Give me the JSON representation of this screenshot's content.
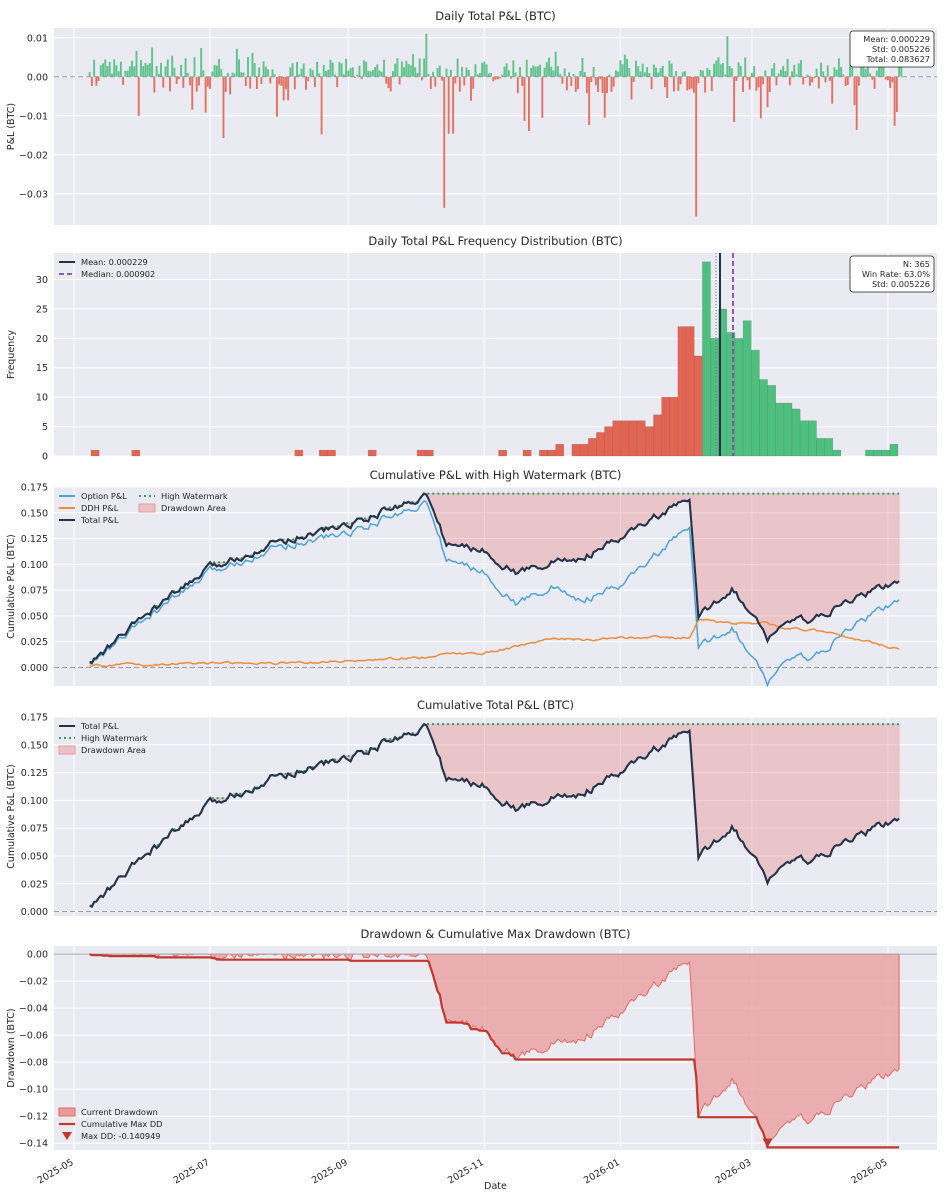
{
  "colors": {
    "positive": "#4ebf7f",
    "negative": "#e26452",
    "option": "#4da3d8",
    "ddh": "#ee8c3a",
    "total": "#25334a",
    "hwm": "#2aa35c",
    "drawdown_fill": "#e99a9a",
    "maxdd": "#c0392b",
    "median": "#8e44ad",
    "axes_bg": "#eaeaf2",
    "grid": "#ffffff"
  },
  "chart_data": [
    {
      "type": "bar",
      "title": "Daily Total P&L (BTC)",
      "ylabel": "P&L (BTC)",
      "xlabel": "",
      "ylim": [
        -0.038,
        0.0125
      ],
      "yticks": [
        0.01,
        0.0,
        -0.01,
        -0.02,
        -0.03
      ],
      "ytick_labels": [
        "0.01",
        "0.00",
        "−0.01",
        "−0.02",
        "−0.03"
      ],
      "x_range": [
        "2025-05-08",
        "2026-05-06"
      ],
      "n_days": 365,
      "stats_box": [
        "Mean: 0.000229",
        "Std: 0.005226",
        "Total: 0.083627"
      ],
      "notable_values": [
        {
          "x": "2025-10-14",
          "y": -0.0336
        },
        {
          "x": "2026-02-04",
          "y": -0.0358
        },
        {
          "x": "2025-10-06",
          "y": 0.011
        },
        {
          "x": "2026-02-18",
          "y": 0.0104
        }
      ],
      "grid": true
    },
    {
      "type": "bar",
      "title": "Daily Total P&L Frequency Distribution (BTC)",
      "ylabel": "Frequency",
      "xlabel": "",
      "ylim": [
        0,
        34.5
      ],
      "yticks": [
        0,
        5,
        10,
        15,
        20,
        25,
        30
      ],
      "bin_counts": [
        1,
        0,
        0,
        0,
        0,
        1,
        0,
        0,
        0,
        0,
        0,
        0,
        0,
        0,
        0,
        0,
        0,
        0,
        0,
        0,
        0,
        0,
        0,
        0,
        0,
        1,
        0,
        0,
        1,
        1,
        0,
        0,
        0,
        0,
        1,
        0,
        0,
        0,
        0,
        0,
        1,
        1,
        0,
        0,
        0,
        0,
        0,
        0,
        0,
        0,
        1,
        0,
        0,
        1,
        0,
        1,
        1,
        2,
        0,
        2,
        2,
        3,
        4,
        5,
        6,
        6,
        6,
        6,
        5,
        7,
        10,
        10,
        22,
        22,
        17,
        33,
        20,
        25,
        21,
        20,
        23,
        18,
        13,
        12,
        9,
        9,
        8,
        6,
        6,
        3,
        3,
        1,
        0,
        0,
        0,
        1,
        1,
        1,
        2
      ],
      "n_negative_bins": 75,
      "legend": [
        "Mean: 0.000229",
        "Median: 0.000902"
      ],
      "legend_position": "top-left",
      "stats_box": [
        "N: 365",
        "Win Rate: 63.0%",
        "Std: 0.005226"
      ],
      "grid": true
    },
    {
      "type": "line",
      "title": "Cumulative P&L with High Watermark (BTC)",
      "ylabel": "Cumulative P&L (BTC)",
      "xlabel": "",
      "ylim": [
        -0.018,
        0.175
      ],
      "yticks": [
        0.0,
        0.025,
        0.05,
        0.075,
        0.1,
        0.125,
        0.15,
        0.175
      ],
      "ytick_labels": [
        "0.000",
        "0.025",
        "0.050",
        "0.075",
        "0.100",
        "0.125",
        "0.150",
        "0.175"
      ],
      "series": [
        {
          "name": "Option P&L",
          "x": [
            "2025-05-08",
            "2025-06-01",
            "2025-07-01",
            "2025-08-01",
            "2025-09-01",
            "2025-10-06",
            "2025-10-15",
            "2025-11-01",
            "2025-11-15",
            "2025-12-01",
            "2025-12-15",
            "2026-01-01",
            "2026-01-15",
            "2026-02-01",
            "2026-02-05",
            "2026-02-20",
            "2026-03-08",
            "2026-03-15",
            "2026-04-01",
            "2026-04-15",
            "2026-05-06"
          ],
          "values": [
            0.002,
            0.045,
            0.092,
            0.118,
            0.13,
            0.16,
            0.105,
            0.092,
            0.062,
            0.078,
            0.065,
            0.078,
            0.106,
            0.135,
            0.019,
            0.04,
            -0.015,
            0.006,
            0.012,
            0.04,
            0.066
          ]
        },
        {
          "name": "DDH P&L",
          "x": [
            "2025-05-08",
            "2025-06-01",
            "2025-07-01",
            "2025-08-01",
            "2025-09-01",
            "2025-10-06",
            "2025-10-15",
            "2025-11-01",
            "2025-11-15",
            "2025-12-01",
            "2025-12-15",
            "2026-01-01",
            "2026-01-15",
            "2026-02-01",
            "2026-02-05",
            "2026-02-20",
            "2026-03-08",
            "2026-03-15",
            "2026-04-01",
            "2026-04-15",
            "2026-05-06"
          ],
          "values": [
            0.002,
            0.003,
            0.004,
            0.004,
            0.006,
            0.01,
            0.013,
            0.014,
            0.02,
            0.028,
            0.027,
            0.028,
            0.03,
            0.028,
            0.046,
            0.042,
            0.043,
            0.038,
            0.036,
            0.028,
            0.018
          ]
        },
        {
          "name": "Total P&L",
          "x": [
            "2025-05-08",
            "2025-06-01",
            "2025-07-01",
            "2025-08-01",
            "2025-09-01",
            "2025-10-06",
            "2025-10-15",
            "2025-11-01",
            "2025-11-15",
            "2025-12-01",
            "2025-12-15",
            "2026-01-01",
            "2026-01-15",
            "2026-02-01",
            "2026-02-05",
            "2026-02-20",
            "2026-03-08",
            "2026-03-15",
            "2026-04-01",
            "2026-04-15",
            "2026-05-06"
          ],
          "values": [
            0.003,
            0.049,
            0.096,
            0.123,
            0.138,
            0.167,
            0.12,
            0.113,
            0.092,
            0.102,
            0.106,
            0.124,
            0.144,
            0.162,
            0.048,
            0.078,
            0.028,
            0.043,
            0.048,
            0.066,
            0.084
          ]
        },
        {
          "name": "High Watermark",
          "x": [
            "2025-05-08",
            "2025-10-06",
            "2026-05-06"
          ],
          "values": [
            0.003,
            0.167,
            0.167
          ]
        }
      ],
      "fills": [
        {
          "name": "Drawdown Area",
          "between": [
            "Total P&L",
            "High Watermark"
          ]
        }
      ],
      "legend_position": "top-left",
      "grid": true
    },
    {
      "type": "line",
      "title": "Cumulative Total P&L (BTC)",
      "ylabel": "Cumulative P&L (BTC)",
      "xlabel": "",
      "ylim": [
        -0.004,
        0.175
      ],
      "yticks": [
        0.0,
        0.025,
        0.05,
        0.075,
        0.1,
        0.125,
        0.15,
        0.175
      ],
      "ytick_labels": [
        "0.000",
        "0.025",
        "0.050",
        "0.075",
        "0.100",
        "0.125",
        "0.150",
        "0.175"
      ],
      "series": [
        {
          "name": "Total P&L",
          "x": [
            "2025-05-08",
            "2025-06-01",
            "2025-07-01",
            "2025-08-01",
            "2025-09-01",
            "2025-10-06",
            "2025-10-15",
            "2025-11-01",
            "2025-11-15",
            "2025-12-01",
            "2025-12-15",
            "2026-01-01",
            "2026-01-15",
            "2026-02-01",
            "2026-02-05",
            "2026-02-20",
            "2026-03-08",
            "2026-03-15",
            "2026-04-01",
            "2026-04-15",
            "2026-05-06"
          ],
          "values": [
            0.003,
            0.049,
            0.096,
            0.123,
            0.138,
            0.167,
            0.12,
            0.113,
            0.092,
            0.102,
            0.106,
            0.124,
            0.144,
            0.162,
            0.048,
            0.078,
            0.028,
            0.043,
            0.048,
            0.066,
            0.084
          ]
        },
        {
          "name": "High Watermark",
          "x": [
            "2025-05-08",
            "2025-10-06",
            "2026-05-06"
          ],
          "values": [
            0.003,
            0.167,
            0.167
          ]
        }
      ],
      "fills": [
        {
          "name": "Drawdown Area",
          "between": [
            "Total P&L",
            "High Watermark"
          ]
        }
      ],
      "legend_position": "top-left",
      "grid": true
    },
    {
      "type": "area",
      "title": "Drawdown & Cumulative Max Drawdown (BTC)",
      "ylabel": "Drawdown (BTC)",
      "xlabel": "Date",
      "ylim": [
        -0.145,
        0.006
      ],
      "yticks": [
        0.0,
        -0.02,
        -0.04,
        -0.06,
        -0.08,
        -0.1,
        -0.12,
        -0.14
      ],
      "ytick_labels": [
        "0.00",
        "−0.02",
        "−0.04",
        "−0.06",
        "−0.08",
        "−0.10",
        "−0.12",
        "−0.14"
      ],
      "x_ticks": [
        "2025-05",
        "2025-07",
        "2025-09",
        "2025-11",
        "2026-01",
        "2026-03",
        "2026-05"
      ],
      "series": [
        {
          "name": "Current Drawdown",
          "x": [
            "2025-05-08",
            "2025-06-01",
            "2025-07-01",
            "2025-08-01",
            "2025-09-01",
            "2025-10-06",
            "2025-10-15",
            "2025-11-01",
            "2025-11-15",
            "2025-12-01",
            "2025-12-15",
            "2026-01-01",
            "2026-01-15",
            "2026-02-01",
            "2026-02-05",
            "2026-02-20",
            "2026-03-08",
            "2026-03-15",
            "2026-04-01",
            "2026-04-15",
            "2026-05-06"
          ],
          "values": [
            0.0,
            -0.003,
            -0.004,
            -0.005,
            -0.006,
            0.0,
            -0.047,
            -0.054,
            -0.075,
            -0.065,
            -0.061,
            -0.043,
            -0.023,
            -0.005,
            -0.119,
            -0.089,
            -0.141,
            -0.124,
            -0.119,
            -0.101,
            -0.083
          ]
        },
        {
          "name": "Cumulative Max DD",
          "x": [
            "2025-05-08",
            "2025-05-20",
            "2025-06-01",
            "2025-07-05",
            "2025-10-15",
            "2025-10-20",
            "2025-11-15",
            "2026-02-05",
            "2026-02-20",
            "2026-03-08",
            "2026-05-06"
          ],
          "values": [
            0.0,
            -0.004,
            -0.008,
            -0.013,
            -0.044,
            -0.052,
            -0.077,
            -0.116,
            -0.117,
            -0.141,
            -0.141
          ]
        }
      ],
      "marker": {
        "label": "Max DD: -0.140949",
        "x": "2026-03-08",
        "y": -0.140949
      },
      "legend": [
        "Current Drawdown",
        "Cumulative Max DD",
        "Max DD: -0.140949"
      ],
      "legend_position": "bottom-left",
      "grid": true
    }
  ]
}
